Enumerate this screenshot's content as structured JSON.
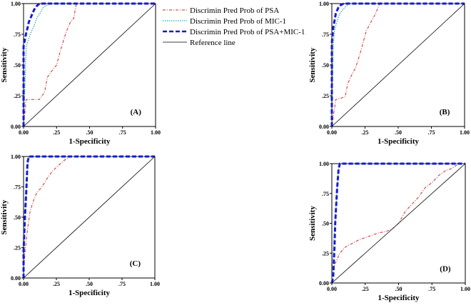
{
  "figure_caption": "",
  "legend": {
    "entries": [
      {
        "label": "Discrimin Pred Prob of PSA",
        "color": "#cc2a2a",
        "style": "dash-dot"
      },
      {
        "label": "Discrimin Pred Prob of MIC-1",
        "color": "#2aa89a",
        "style": "dotted"
      },
      {
        "label": "Discrimin Pred Prob of PSA+MIC-1",
        "color": "#1a1acc",
        "style": "dashed"
      },
      {
        "label": "Reference line",
        "color": "#000000",
        "style": "solid"
      }
    ]
  },
  "chart_data": [
    {
      "type": "line",
      "panel": "(A)",
      "xlabel": "1-Specificity",
      "ylabel": "Sensitivity",
      "xlim": [
        0,
        1
      ],
      "ylim": [
        0,
        1
      ],
      "xticks": [
        "0.00",
        ".25",
        ".50",
        ".75",
        "1.00"
      ],
      "yticks": [
        "0.00",
        ".25",
        ".50",
        ".75",
        "1.00"
      ],
      "series": [
        {
          "name": "Discrimin Pred Prob of PSA",
          "x": [
            0,
            0.02,
            0.12,
            0.16,
            0.18,
            0.22,
            0.25,
            0.28,
            0.32,
            0.35,
            0.38,
            0.4,
            1.0
          ],
          "y": [
            0,
            0.22,
            0.22,
            0.28,
            0.4,
            0.46,
            0.5,
            0.62,
            0.76,
            0.84,
            0.88,
            1.0,
            1.0
          ]
        },
        {
          "name": "Discrimin Pred Prob of MIC-1",
          "x": [
            0,
            0.02,
            0.05,
            0.08,
            0.1,
            0.13,
            0.15,
            0.2,
            1.0
          ],
          "y": [
            0,
            0.65,
            0.75,
            0.82,
            0.88,
            0.93,
            0.97,
            1.0,
            1.0
          ]
        },
        {
          "name": "Discrimin Pred Prob of PSA+MIC-1",
          "x": [
            0,
            0,
            0.02,
            0.03,
            0.04,
            0.06,
            0.08,
            0.1,
            0.12,
            0.14,
            1.0
          ],
          "y": [
            0,
            0.65,
            0.76,
            0.8,
            0.85,
            0.9,
            0.95,
            0.98,
            1.0,
            1.0,
            1.0
          ]
        },
        {
          "name": "Reference line",
          "x": [
            0,
            1
          ],
          "y": [
            0,
            1
          ]
        }
      ]
    },
    {
      "type": "line",
      "panel": "(B)",
      "xlabel": "1-Specificity",
      "ylabel": "Sensitivity",
      "xlim": [
        0,
        1
      ],
      "ylim": [
        0,
        1
      ],
      "xticks": [
        "0.00",
        ".25",
        ".50",
        ".75",
        "1.00"
      ],
      "yticks": [
        "0.00",
        ".25",
        ".50",
        ".75",
        "1.00"
      ],
      "series": [
        {
          "name": "Discrimin Pred Prob of PSA",
          "x": [
            0,
            0.03,
            0.1,
            0.12,
            0.15,
            0.18,
            0.22,
            0.26,
            0.3,
            0.33,
            0.36,
            1.0
          ],
          "y": [
            0,
            0.22,
            0.24,
            0.35,
            0.42,
            0.48,
            0.62,
            0.78,
            0.86,
            0.92,
            1.0,
            1.0
          ]
        },
        {
          "name": "Discrimin Pred Prob of MIC-1",
          "x": [
            0,
            0.01,
            0.02,
            0.04,
            0.06,
            0.09,
            0.12,
            0.14,
            1.0
          ],
          "y": [
            0,
            0.65,
            0.78,
            0.86,
            0.92,
            0.96,
            0.99,
            1.0,
            1.0
          ]
        },
        {
          "name": "Discrimin Pred Prob of PSA+MIC-1",
          "x": [
            0,
            0,
            0.01,
            0.02,
            0.03,
            0.05,
            0.07,
            0.09,
            1.0
          ],
          "y": [
            0,
            0.68,
            0.8,
            0.86,
            0.92,
            0.97,
            0.99,
            1.0,
            1.0
          ]
        },
        {
          "name": "Reference line",
          "x": [
            0,
            1
          ],
          "y": [
            0,
            1
          ]
        }
      ]
    },
    {
      "type": "line",
      "panel": "(C)",
      "xlabel": "1-Specificity",
      "ylabel": "Sensitivity",
      "xlim": [
        0,
        1
      ],
      "ylim": [
        0,
        1
      ],
      "xticks": [
        "0.00",
        ".25",
        ".50",
        ".75",
        "1.00"
      ],
      "yticks": [
        "0.00",
        ".25",
        ".50",
        ".75",
        "1.00"
      ],
      "series": [
        {
          "name": "Discrimin Pred Prob of PSA",
          "x": [
            0,
            0.01,
            0.03,
            0.05,
            0.08,
            0.1,
            0.14,
            0.18,
            0.22,
            0.26,
            0.3,
            0.35,
            1.0
          ],
          "y": [
            0,
            0.2,
            0.4,
            0.55,
            0.65,
            0.7,
            0.75,
            0.82,
            0.88,
            0.92,
            0.96,
            1.0,
            1.0
          ]
        },
        {
          "name": "Discrimin Pred Prob of MIC-1",
          "x": [
            0,
            0.005,
            0.01,
            0.02,
            0.03,
            0.04,
            1.0
          ],
          "y": [
            0,
            0.2,
            0.45,
            0.7,
            0.9,
            1.0,
            1.0
          ]
        },
        {
          "name": "Discrimin Pred Prob of PSA+MIC-1",
          "x": [
            0,
            0,
            0.01,
            0.02,
            0.025,
            0.03,
            0.04,
            1.0
          ],
          "y": [
            0,
            0.22,
            0.48,
            0.7,
            0.82,
            0.95,
            1.0,
            1.0
          ]
        },
        {
          "name": "Reference line",
          "x": [
            0,
            1
          ],
          "y": [
            0,
            1
          ]
        }
      ]
    },
    {
      "type": "line",
      "panel": "(D)",
      "xlabel": "1-Specificity",
      "ylabel": "Sensitivity",
      "xlim": [
        0,
        1
      ],
      "ylim": [
        0,
        1
      ],
      "xticks": [
        "0.00",
        ".25",
        ".50",
        ".75",
        "1.00"
      ],
      "yticks": [
        "0.00",
        ".25",
        ".50",
        ".75",
        "1.00"
      ],
      "series": [
        {
          "name": "Discrimin Pred Prob of PSA",
          "x": [
            0,
            0.02,
            0.06,
            0.1,
            0.15,
            0.2,
            0.25,
            0.3,
            0.35,
            0.4,
            0.45,
            0.5,
            0.55,
            0.6,
            0.65,
            0.7,
            0.75,
            0.8,
            0.85,
            0.9,
            0.95,
            1.0
          ],
          "y": [
            0,
            0.15,
            0.25,
            0.3,
            0.33,
            0.36,
            0.38,
            0.4,
            0.42,
            0.43,
            0.45,
            0.5,
            0.6,
            0.66,
            0.72,
            0.8,
            0.84,
            0.9,
            0.94,
            0.96,
            1.0,
            1.0
          ]
        },
        {
          "name": "Discrimin Pred Prob of MIC-1",
          "x": [
            0,
            0.02,
            0.03,
            0.04,
            0.05,
            0.06,
            1.0
          ],
          "y": [
            0,
            0.45,
            0.6,
            0.8,
            0.95,
            1.0,
            1.0
          ]
        },
        {
          "name": "Discrimin Pred Prob of PSA+MIC-1",
          "x": [
            0,
            0.01,
            0.02,
            0.025,
            0.03,
            0.04,
            0.05,
            0.06,
            1.0
          ],
          "y": [
            0,
            0.05,
            0.3,
            0.5,
            0.6,
            0.8,
            0.95,
            1.0,
            1.0
          ]
        },
        {
          "name": "Reference line",
          "x": [
            0,
            1
          ],
          "y": [
            0,
            1
          ]
        }
      ]
    }
  ]
}
